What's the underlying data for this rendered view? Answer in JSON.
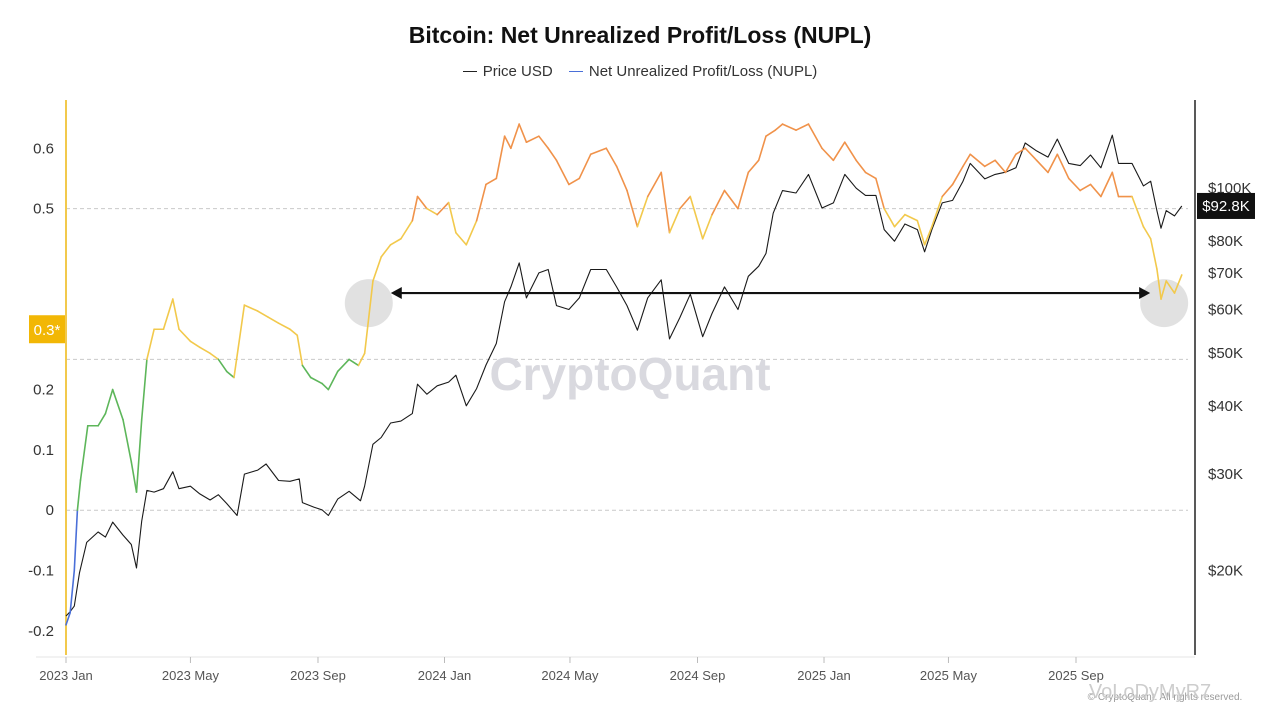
{
  "title": "Bitcoin: Net Unrealized Profit/Loss (NUPL)",
  "legend": [
    {
      "label": "Price USD",
      "color": "#222222"
    },
    {
      "label": "Net Unrealized Profit/Loss (NUPL)",
      "color": "#4a6fd8"
    }
  ],
  "watermark": "CryptoQuant",
  "footer_text": "© CryptoQuant. All rights reserved.",
  "author_watermark": "VoLoDyMyR7",
  "chart_data": {
    "type": "line",
    "x_ticks": [
      "2023 Jan",
      "2023 May",
      "2023 Sep",
      "2024 Jan",
      "2024 May",
      "2024 Sep",
      "2025 Jan",
      "2025 May",
      "2025 Sep"
    ],
    "left_axis": {
      "ticks": [
        "-0.2",
        "-0.1",
        "0",
        "0.1",
        "0.2",
        "0.3",
        "0.5",
        "0.6"
      ],
      "range": [
        -0.24,
        0.68
      ],
      "highlight_label": "0.3*",
      "highlight_value": 0.3
    },
    "right_axis": {
      "scale": "log",
      "ticks": [
        "$20K",
        "$30K",
        "$40K",
        "$50K",
        "$60K",
        "$70K",
        "$80K",
        "$100K"
      ],
      "tick_values": [
        20000,
        30000,
        40000,
        50000,
        60000,
        70000,
        80000,
        100000
      ],
      "range": [
        14000,
        145000
      ],
      "current_label": "$92.8K",
      "current_value": 92800
    },
    "reference_lines": [
      0,
      0.25,
      0.5
    ],
    "nupl_color_bands": {
      "blue": "<0",
      "green": "0-0.25",
      "yellow": "0.25-0.5",
      "orange": ">0.5"
    },
    "band_colors": {
      "blue": "#4a6fd8",
      "green": "#5db65a",
      "yellow": "#f2c94c",
      "orange": "#f0924a"
    },
    "comparison_arrow": {
      "from_date": "2023-10-20",
      "to_date": "2025-11-25",
      "nupl_level": 0.36
    },
    "series": [
      {
        "name": "Net Unrealized Profit/Loss (NUPL)",
        "axis": "left",
        "points": [
          [
            "2023-01-01",
            -0.19
          ],
          [
            "2023-01-05",
            -0.17
          ],
          [
            "2023-01-09",
            -0.1
          ],
          [
            "2023-01-12",
            0.0
          ],
          [
            "2023-01-15",
            0.05
          ],
          [
            "2023-01-22",
            0.14
          ],
          [
            "2023-02-01",
            0.14
          ],
          [
            "2023-02-08",
            0.16
          ],
          [
            "2023-02-15",
            0.2
          ],
          [
            "2023-02-25",
            0.15
          ],
          [
            "2023-03-05",
            0.08
          ],
          [
            "2023-03-10",
            0.03
          ],
          [
            "2023-03-15",
            0.15
          ],
          [
            "2023-03-20",
            0.25
          ],
          [
            "2023-03-27",
            0.3
          ],
          [
            "2023-04-05",
            0.3
          ],
          [
            "2023-04-14",
            0.35
          ],
          [
            "2023-04-20",
            0.3
          ],
          [
            "2023-05-01",
            0.28
          ],
          [
            "2023-05-10",
            0.27
          ],
          [
            "2023-05-20",
            0.26
          ],
          [
            "2023-05-28",
            0.25
          ],
          [
            "2023-06-05",
            0.23
          ],
          [
            "2023-06-12",
            0.22
          ],
          [
            "2023-06-22",
            0.34
          ],
          [
            "2023-07-05",
            0.33
          ],
          [
            "2023-07-15",
            0.32
          ],
          [
            "2023-07-25",
            0.31
          ],
          [
            "2023-08-05",
            0.3
          ],
          [
            "2023-08-12",
            0.29
          ],
          [
            "2023-08-17",
            0.24
          ],
          [
            "2023-08-25",
            0.22
          ],
          [
            "2023-09-05",
            0.21
          ],
          [
            "2023-09-11",
            0.2
          ],
          [
            "2023-09-20",
            0.23
          ],
          [
            "2023-10-01",
            0.25
          ],
          [
            "2023-10-10",
            0.24
          ],
          [
            "2023-10-16",
            0.26
          ],
          [
            "2023-10-24",
            0.38
          ],
          [
            "2023-11-01",
            0.42
          ],
          [
            "2023-11-10",
            0.44
          ],
          [
            "2023-11-20",
            0.45
          ],
          [
            "2023-12-01",
            0.48
          ],
          [
            "2023-12-06",
            0.52
          ],
          [
            "2023-12-15",
            0.5
          ],
          [
            "2023-12-25",
            0.49
          ],
          [
            "2024-01-05",
            0.51
          ],
          [
            "2024-01-12",
            0.46
          ],
          [
            "2024-01-22",
            0.44
          ],
          [
            "2024-02-01",
            0.48
          ],
          [
            "2024-02-10",
            0.54
          ],
          [
            "2024-02-20",
            0.55
          ],
          [
            "2024-02-28",
            0.62
          ],
          [
            "2024-03-05",
            0.6
          ],
          [
            "2024-03-13",
            0.64
          ],
          [
            "2024-03-20",
            0.61
          ],
          [
            "2024-04-01",
            0.62
          ],
          [
            "2024-04-10",
            0.6
          ],
          [
            "2024-04-18",
            0.58
          ],
          [
            "2024-04-30",
            0.54
          ],
          [
            "2024-05-10",
            0.55
          ],
          [
            "2024-05-21",
            0.59
          ],
          [
            "2024-06-05",
            0.6
          ],
          [
            "2024-06-15",
            0.57
          ],
          [
            "2024-06-25",
            0.53
          ],
          [
            "2024-07-05",
            0.47
          ],
          [
            "2024-07-15",
            0.52
          ],
          [
            "2024-07-28",
            0.56
          ],
          [
            "2024-08-05",
            0.46
          ],
          [
            "2024-08-15",
            0.5
          ],
          [
            "2024-08-25",
            0.52
          ],
          [
            "2024-09-06",
            0.45
          ],
          [
            "2024-09-15",
            0.49
          ],
          [
            "2024-09-27",
            0.53
          ],
          [
            "2024-10-10",
            0.5
          ],
          [
            "2024-10-20",
            0.56
          ],
          [
            "2024-10-30",
            0.58
          ],
          [
            "2024-11-06",
            0.62
          ],
          [
            "2024-11-15",
            0.63
          ],
          [
            "2024-11-22",
            0.64
          ],
          [
            "2024-12-05",
            0.63
          ],
          [
            "2024-12-17",
            0.64
          ],
          [
            "2024-12-30",
            0.6
          ],
          [
            "2025-01-10",
            0.58
          ],
          [
            "2025-01-21",
            0.61
          ],
          [
            "2025-02-01",
            0.58
          ],
          [
            "2025-02-10",
            0.56
          ],
          [
            "2025-02-20",
            0.55
          ],
          [
            "2025-02-28",
            0.5
          ],
          [
            "2025-03-10",
            0.47
          ],
          [
            "2025-03-20",
            0.49
          ],
          [
            "2025-04-01",
            0.48
          ],
          [
            "2025-04-08",
            0.44
          ],
          [
            "2025-04-15",
            0.47
          ],
          [
            "2025-04-25",
            0.52
          ],
          [
            "2025-05-05",
            0.54
          ],
          [
            "2025-05-15",
            0.57
          ],
          [
            "2025-05-22",
            0.59
          ],
          [
            "2025-06-05",
            0.57
          ],
          [
            "2025-06-15",
            0.58
          ],
          [
            "2025-06-25",
            0.56
          ],
          [
            "2025-07-05",
            0.59
          ],
          [
            "2025-07-14",
            0.6
          ],
          [
            "2025-07-25",
            0.58
          ],
          [
            "2025-08-05",
            0.56
          ],
          [
            "2025-08-14",
            0.59
          ],
          [
            "2025-08-25",
            0.55
          ],
          [
            "2025-09-05",
            0.53
          ],
          [
            "2025-09-15",
            0.54
          ],
          [
            "2025-09-25",
            0.52
          ],
          [
            "2025-10-06",
            0.56
          ],
          [
            "2025-10-12",
            0.52
          ],
          [
            "2025-10-25",
            0.52
          ],
          [
            "2025-11-05",
            0.47
          ],
          [
            "2025-11-12",
            0.45
          ],
          [
            "2025-11-18",
            0.4
          ],
          [
            "2025-11-22",
            0.35
          ],
          [
            "2025-11-27",
            0.38
          ],
          [
            "2025-12-05",
            0.36
          ],
          [
            "2025-12-12",
            0.39
          ]
        ]
      },
      {
        "name": "Price USD",
        "axis": "right",
        "points": [
          [
            "2023-01-01",
            16500
          ],
          [
            "2023-01-05",
            16800
          ],
          [
            "2023-01-09",
            17200
          ],
          [
            "2023-01-14",
            19800
          ],
          [
            "2023-01-21",
            22500
          ],
          [
            "2023-02-01",
            23500
          ],
          [
            "2023-02-08",
            23000
          ],
          [
            "2023-02-15",
            24500
          ],
          [
            "2023-02-25",
            23200
          ],
          [
            "2023-03-05",
            22300
          ],
          [
            "2023-03-10",
            20200
          ],
          [
            "2023-03-15",
            24600
          ],
          [
            "2023-03-20",
            28000
          ],
          [
            "2023-03-27",
            27800
          ],
          [
            "2023-04-05",
            28200
          ],
          [
            "2023-04-14",
            30300
          ],
          [
            "2023-04-20",
            28200
          ],
          [
            "2023-05-01",
            28500
          ],
          [
            "2023-05-10",
            27600
          ],
          [
            "2023-05-20",
            26900
          ],
          [
            "2023-05-28",
            27500
          ],
          [
            "2023-06-05",
            26500
          ],
          [
            "2023-06-15",
            25200
          ],
          [
            "2023-06-22",
            30000
          ],
          [
            "2023-07-05",
            30500
          ],
          [
            "2023-07-13",
            31300
          ],
          [
            "2023-07-25",
            29200
          ],
          [
            "2023-08-05",
            29100
          ],
          [
            "2023-08-14",
            29400
          ],
          [
            "2023-08-17",
            26600
          ],
          [
            "2023-08-28",
            26100
          ],
          [
            "2023-09-05",
            25800
          ],
          [
            "2023-09-11",
            25200
          ],
          [
            "2023-09-20",
            27000
          ],
          [
            "2023-10-01",
            27900
          ],
          [
            "2023-10-12",
            26800
          ],
          [
            "2023-10-16",
            28500
          ],
          [
            "2023-10-24",
            34000
          ],
          [
            "2023-11-01",
            35000
          ],
          [
            "2023-11-10",
            37200
          ],
          [
            "2023-11-20",
            37500
          ],
          [
            "2023-12-01",
            38700
          ],
          [
            "2023-12-06",
            43800
          ],
          [
            "2023-12-15",
            42000
          ],
          [
            "2023-12-25",
            43500
          ],
          [
            "2024-01-05",
            44200
          ],
          [
            "2024-01-12",
            45500
          ],
          [
            "2024-01-22",
            40000
          ],
          [
            "2024-02-01",
            43000
          ],
          [
            "2024-02-10",
            47500
          ],
          [
            "2024-02-20",
            52000
          ],
          [
            "2024-02-28",
            62000
          ],
          [
            "2024-03-05",
            66000
          ],
          [
            "2024-03-13",
            73000
          ],
          [
            "2024-03-20",
            63000
          ],
          [
            "2024-04-01",
            70000
          ],
          [
            "2024-04-10",
            71000
          ],
          [
            "2024-04-18",
            61000
          ],
          [
            "2024-04-30",
            60000
          ],
          [
            "2024-05-10",
            63000
          ],
          [
            "2024-05-21",
            71000
          ],
          [
            "2024-06-05",
            71000
          ],
          [
            "2024-06-15",
            66000
          ],
          [
            "2024-06-25",
            61000
          ],
          [
            "2024-07-05",
            55000
          ],
          [
            "2024-07-15",
            63000
          ],
          [
            "2024-07-28",
            68000
          ],
          [
            "2024-08-05",
            53000
          ],
          [
            "2024-08-15",
            58000
          ],
          [
            "2024-08-25",
            64000
          ],
          [
            "2024-09-06",
            53500
          ],
          [
            "2024-09-15",
            59000
          ],
          [
            "2024-09-27",
            66000
          ],
          [
            "2024-10-10",
            60000
          ],
          [
            "2024-10-20",
            69000
          ],
          [
            "2024-10-30",
            72000
          ],
          [
            "2024-11-06",
            76000
          ],
          [
            "2024-11-13",
            90000
          ],
          [
            "2024-11-22",
            99000
          ],
          [
            "2024-12-05",
            98000
          ],
          [
            "2024-12-17",
            106000
          ],
          [
            "2024-12-30",
            92000
          ],
          [
            "2025-01-10",
            94000
          ],
          [
            "2025-01-21",
            106000
          ],
          [
            "2025-02-01",
            100000
          ],
          [
            "2025-02-10",
            97000
          ],
          [
            "2025-02-20",
            97000
          ],
          [
            "2025-02-28",
            84000
          ],
          [
            "2025-03-10",
            80000
          ],
          [
            "2025-03-20",
            86000
          ],
          [
            "2025-04-01",
            84000
          ],
          [
            "2025-04-08",
            76500
          ],
          [
            "2025-04-15",
            84000
          ],
          [
            "2025-04-25",
            94000
          ],
          [
            "2025-05-05",
            95000
          ],
          [
            "2025-05-15",
            103000
          ],
          [
            "2025-05-22",
            111000
          ],
          [
            "2025-06-05",
            104000
          ],
          [
            "2025-06-15",
            106000
          ],
          [
            "2025-06-25",
            107000
          ],
          [
            "2025-07-05",
            109000
          ],
          [
            "2025-07-14",
            121000
          ],
          [
            "2025-07-25",
            117000
          ],
          [
            "2025-08-05",
            114000
          ],
          [
            "2025-08-14",
            123000
          ],
          [
            "2025-08-25",
            111000
          ],
          [
            "2025-09-05",
            110000
          ],
          [
            "2025-09-15",
            115000
          ],
          [
            "2025-09-25",
            109000
          ],
          [
            "2025-10-06",
            125000
          ],
          [
            "2025-10-12",
            111000
          ],
          [
            "2025-10-25",
            111000
          ],
          [
            "2025-11-05",
            101000
          ],
          [
            "2025-11-12",
            103000
          ],
          [
            "2025-11-18",
            91000
          ],
          [
            "2025-11-22",
            84500
          ],
          [
            "2025-11-27",
            91000
          ],
          [
            "2025-12-05",
            89000
          ],
          [
            "2025-12-12",
            92800
          ]
        ]
      }
    ]
  }
}
